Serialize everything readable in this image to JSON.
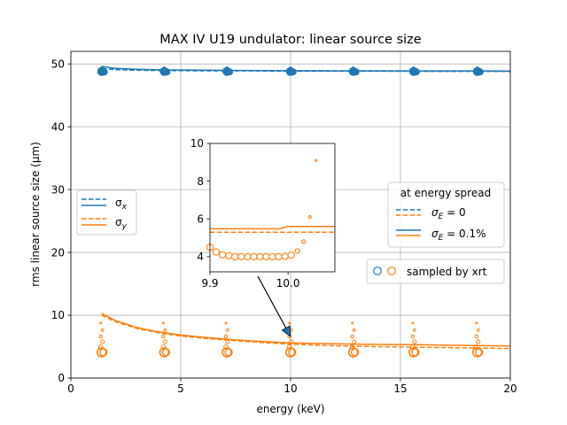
{
  "chart_data": {
    "type": "line",
    "title": "MAX IV U19 undulator: linear source size",
    "xlabel": "energy (keV)",
    "ylabel": "rms linear source size (μm)",
    "xlim": [
      0,
      20
    ],
    "ylim": [
      0,
      52
    ],
    "xticks": [
      0,
      5,
      10,
      15,
      20
    ],
    "yticks": [
      0,
      10,
      20,
      30,
      40,
      50
    ],
    "grid": true,
    "colors": {
      "sigma_x": "#1f77b4",
      "sigma_y": "#ff7f0e"
    },
    "legend_left": {
      "placement": "center-left",
      "entries": [
        {
          "sub": "x",
          "color": "#1f77b4"
        },
        {
          "sub": "y",
          "color": "#ff7f0e"
        }
      ]
    },
    "legend_energy": {
      "placement": "center-right",
      "title": "at energy spread",
      "entries": [
        {
          "label": "= 0",
          "style": "dashed"
        },
        {
          "label": "= 0.1%",
          "style": "solid"
        }
      ]
    },
    "legend_sampled": {
      "placement": "right",
      "label": "sampled by xrt"
    },
    "series": [
      {
        "name": "σx, σE = 0",
        "color": "#1f77b4",
        "style": "dashed",
        "x": [
          1.4,
          2,
          3,
          4,
          6,
          8,
          10,
          12,
          14,
          16,
          18,
          20
        ],
        "y": [
          49.3,
          49.1,
          49.0,
          48.95,
          48.9,
          48.9,
          48.85,
          48.85,
          48.85,
          48.82,
          48.82,
          48.8
        ]
      },
      {
        "name": "σx, σE = 0.1%",
        "color": "#1f77b4",
        "style": "solid",
        "x": [
          1.4,
          2,
          3,
          4,
          6,
          8,
          10,
          12,
          14,
          16,
          18,
          20
        ],
        "y": [
          49.6,
          49.3,
          49.15,
          49.05,
          49.0,
          48.95,
          48.92,
          48.9,
          48.9,
          48.88,
          48.88,
          48.86
        ]
      },
      {
        "name": "σy, σE = 0",
        "color": "#ff7f0e",
        "style": "dashed",
        "x": [
          1.4,
          2,
          3,
          4,
          5,
          6,
          8,
          10,
          12,
          14,
          16,
          18,
          20
        ],
        "y": [
          10.0,
          9.0,
          7.9,
          7.2,
          6.7,
          6.35,
          5.8,
          5.4,
          5.15,
          5.0,
          4.9,
          4.8,
          4.7
        ]
      },
      {
        "name": "σy, σE = 0.1%",
        "color": "#ff7f0e",
        "style": "solid",
        "x": [
          1.4,
          2,
          3,
          4,
          5,
          6,
          8,
          10,
          12,
          14,
          16,
          18,
          20
        ],
        "y": [
          10.3,
          9.2,
          8.05,
          7.35,
          6.85,
          6.5,
          5.95,
          5.6,
          5.45,
          5.35,
          5.3,
          5.2,
          5.1
        ]
      }
    ],
    "sampled": {
      "centers": [
        1.4,
        4.25,
        7.1,
        9.99,
        12.85,
        15.6,
        18.5
      ],
      "sigma_x": [
        48.8,
        48.8,
        48.8,
        48.8,
        48.8,
        48.8,
        48.8
      ],
      "sigma_y": [
        4.1,
        4.1,
        4.1,
        4.1,
        4.1,
        4.1,
        4.1
      ]
    },
    "inset": {
      "xlim": [
        9.9,
        10.06
      ],
      "ylim": [
        3.2,
        10
      ],
      "xticks": [
        9.9,
        10.0
      ],
      "xticklabels": [
        "9.9",
        "10.0"
      ],
      "yticks": [
        4,
        6,
        8,
        10
      ],
      "dashed_y": 5.3,
      "solid": {
        "x": [
          9.9,
          9.99,
          9.995,
          10.0,
          10.06
        ],
        "y": [
          5.48,
          5.48,
          5.55,
          5.6,
          5.6
        ]
      },
      "sampled_points": {
        "x": [
          9.9,
          9.908,
          9.916,
          9.924,
          9.932,
          9.94,
          9.948,
          9.956,
          9.964,
          9.972,
          9.98,
          9.988,
          9.996,
          10.004,
          10.012,
          10.02,
          10.028,
          10.036,
          10.044
        ],
        "y": [
          4.5,
          4.25,
          4.1,
          4.05,
          4.0,
          4.0,
          4.0,
          4.0,
          4.0,
          4.0,
          4.0,
          4.0,
          4.02,
          4.08,
          4.3,
          4.8,
          6.1,
          9.1,
          10.0
        ]
      },
      "arrow_to": [
        10.0,
        6.6
      ]
    }
  }
}
